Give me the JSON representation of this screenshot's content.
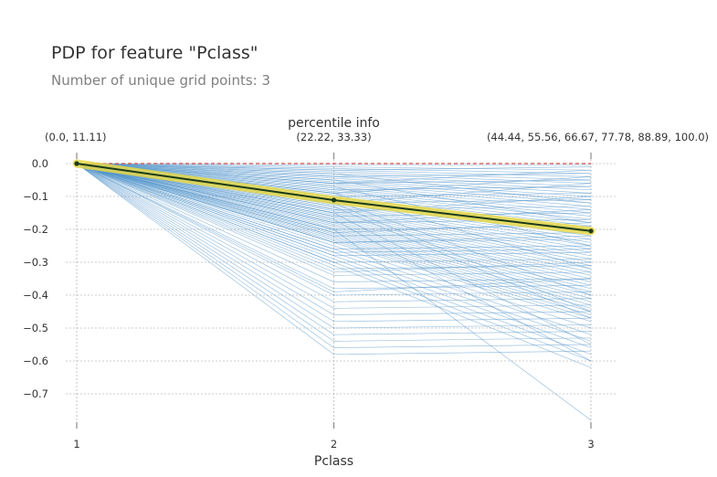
{
  "title": "PDP for feature \"Pclass\"",
  "subtitle": "Number of unique grid points: 3",
  "chart_data": {
    "type": "line",
    "title": "PDP for feature \"Pclass\"",
    "subtitle": "Number of unique grid points: 3",
    "xlabel": "Pclass",
    "ylabel": "",
    "top_axis_label": "percentile info",
    "x": [
      1,
      2,
      3
    ],
    "x_tick_labels": [
      "1",
      "2",
      "3"
    ],
    "percentile_labels": [
      "(0.0, 11.11)",
      "(22.22, 33.33)",
      "(44.44, 55.56, 66.67, 77.78, 88.89, 100.0)"
    ],
    "y_ticks": [
      0.0,
      -0.1,
      -0.2,
      -0.3,
      -0.4,
      -0.5,
      -0.6,
      -0.7
    ],
    "y_tick_labels": [
      "0.0",
      "−0.1",
      "−0.2",
      "−0.3",
      "−0.4",
      "−0.5",
      "−0.6",
      "−0.7"
    ],
    "ylim": [
      -0.79,
      0.045
    ],
    "grid": true,
    "series": [
      {
        "role": "pdp",
        "values": [
          0.0,
          -0.111,
          -0.205
        ]
      },
      {
        "role": "baseline",
        "values": [
          0.0,
          0.0,
          0.0
        ]
      }
    ],
    "ice_lines": [
      [
        0,
        -0.005,
        -0.005
      ],
      [
        0,
        -0.01,
        -0.02
      ],
      [
        0,
        -0.015,
        -0.03
      ],
      [
        0,
        -0.02,
        -0.04
      ],
      [
        0,
        -0.025,
        -0.05
      ],
      [
        0,
        -0.03,
        -0.06
      ],
      [
        0,
        -0.035,
        -0.07
      ],
      [
        0,
        -0.04,
        -0.08
      ],
      [
        0,
        -0.045,
        -0.09
      ],
      [
        0,
        -0.05,
        -0.1
      ],
      [
        0,
        -0.055,
        -0.11
      ],
      [
        0,
        -0.06,
        -0.12
      ],
      [
        0,
        -0.065,
        -0.13
      ],
      [
        0,
        -0.07,
        -0.14
      ],
      [
        0,
        -0.075,
        -0.15
      ],
      [
        0,
        -0.08,
        -0.16
      ],
      [
        0,
        -0.085,
        -0.17
      ],
      [
        0,
        -0.09,
        -0.18
      ],
      [
        0,
        -0.095,
        -0.19
      ],
      [
        0,
        -0.1,
        -0.2
      ],
      [
        0,
        -0.105,
        -0.21
      ],
      [
        0,
        -0.11,
        -0.22
      ],
      [
        0,
        -0.115,
        -0.23
      ],
      [
        0,
        -0.12,
        -0.24
      ],
      [
        0,
        -0.125,
        -0.25
      ],
      [
        0,
        -0.13,
        -0.26
      ],
      [
        0,
        -0.135,
        -0.27
      ],
      [
        0,
        -0.14,
        -0.28
      ],
      [
        0,
        -0.145,
        -0.29
      ],
      [
        0,
        -0.15,
        -0.3
      ],
      [
        0,
        -0.155,
        -0.31
      ],
      [
        0,
        -0.16,
        -0.32
      ],
      [
        0,
        -0.165,
        -0.33
      ],
      [
        0,
        -0.17,
        -0.34
      ],
      [
        0,
        -0.175,
        -0.35
      ],
      [
        0,
        -0.18,
        -0.36
      ],
      [
        0,
        -0.185,
        -0.37
      ],
      [
        0,
        -0.19,
        -0.38
      ],
      [
        0,
        -0.195,
        -0.39
      ],
      [
        0,
        -0.2,
        -0.4
      ],
      [
        0,
        -0.205,
        -0.41
      ],
      [
        0,
        -0.21,
        -0.42
      ],
      [
        0,
        -0.215,
        -0.43
      ],
      [
        0,
        -0.22,
        -0.44
      ],
      [
        0,
        -0.225,
        -0.45
      ],
      [
        0,
        -0.23,
        -0.46
      ],
      [
        0,
        -0.235,
        -0.47
      ],
      [
        0,
        -0.24,
        -0.48
      ],
      [
        0,
        -0.25,
        -0.5
      ],
      [
        0,
        -0.26,
        -0.52
      ],
      [
        0,
        -0.27,
        -0.54
      ],
      [
        0,
        -0.28,
        -0.56
      ],
      [
        0,
        -0.29,
        -0.58
      ],
      [
        0,
        -0.3,
        -0.6
      ],
      [
        0,
        -0.31,
        -0.62
      ],
      [
        0,
        -0.02,
        -0.01
      ],
      [
        0,
        -0.04,
        -0.03
      ],
      [
        0,
        -0.06,
        -0.05
      ],
      [
        0,
        -0.08,
        -0.07
      ],
      [
        0,
        -0.1,
        -0.09
      ],
      [
        0,
        -0.12,
        -0.11
      ],
      [
        0,
        -0.14,
        -0.13
      ],
      [
        0,
        -0.16,
        -0.15
      ],
      [
        0,
        -0.18,
        -0.17
      ],
      [
        0,
        -0.2,
        -0.19
      ],
      [
        0,
        -0.22,
        -0.21
      ],
      [
        0,
        -0.24,
        -0.23
      ],
      [
        0,
        -0.26,
        -0.25
      ],
      [
        0,
        -0.28,
        -0.27
      ],
      [
        0,
        -0.3,
        -0.29
      ],
      [
        0,
        -0.32,
        -0.31
      ],
      [
        0,
        -0.34,
        -0.33
      ],
      [
        0,
        -0.36,
        -0.35
      ],
      [
        0,
        -0.38,
        -0.37
      ],
      [
        0,
        -0.4,
        -0.39
      ],
      [
        0,
        -0.42,
        -0.41
      ],
      [
        0,
        -0.44,
        -0.43
      ],
      [
        0,
        -0.46,
        -0.45
      ],
      [
        0,
        -0.48,
        -0.47
      ],
      [
        0,
        -0.5,
        -0.49
      ],
      [
        0,
        -0.52,
        -0.51
      ],
      [
        0,
        -0.54,
        -0.53
      ],
      [
        0,
        -0.56,
        -0.55
      ],
      [
        0,
        -0.58,
        -0.57
      ],
      [
        0,
        -0.03,
        -0.12
      ],
      [
        0,
        -0.05,
        -0.18
      ],
      [
        0,
        -0.07,
        -0.25
      ],
      [
        0,
        -0.09,
        -0.32
      ],
      [
        0,
        -0.11,
        -0.4
      ],
      [
        0,
        -0.13,
        -0.47
      ],
      [
        0,
        -0.15,
        -0.55
      ],
      [
        0,
        -0.17,
        -0.6
      ],
      [
        0,
        -0.12,
        -0.45
      ],
      [
        0,
        -0.2,
        -0.78
      ],
      [
        0,
        -0.06,
        -0.02
      ],
      [
        0,
        -0.09,
        -0.04
      ],
      [
        0,
        -0.12,
        -0.06
      ],
      [
        0,
        -0.15,
        -0.1
      ],
      [
        0,
        -0.18,
        -0.14
      ],
      [
        0,
        -0.21,
        -0.18
      ],
      [
        0,
        -0.24,
        -0.22
      ],
      [
        0,
        -0.27,
        -0.26
      ],
      [
        0,
        -0.33,
        -0.3
      ],
      [
        0,
        -0.39,
        -0.35
      ]
    ],
    "colors": {
      "ice": "#4a90c8",
      "pdp": "#1a3a1a",
      "pdp_band": "#e6d84a",
      "baseline": "#d14a4a",
      "grid": "#9e9e9e",
      "text": "#333333"
    }
  }
}
